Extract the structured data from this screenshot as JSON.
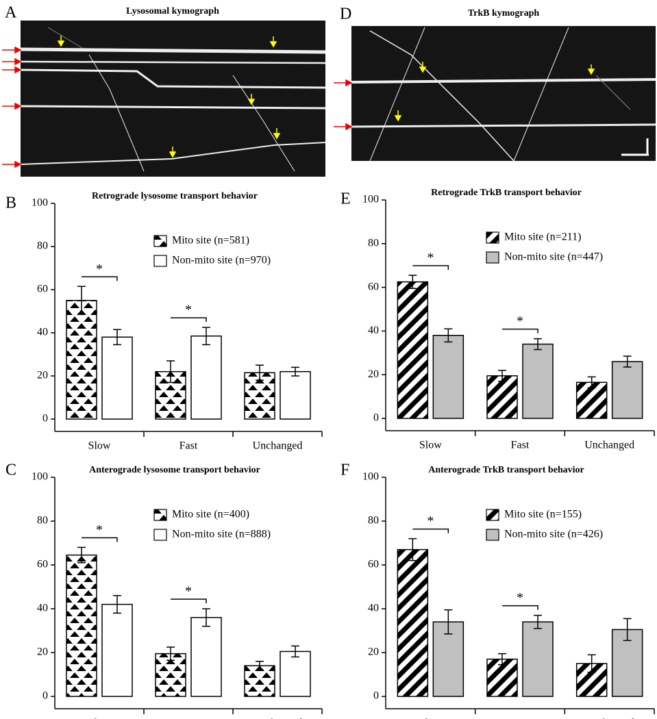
{
  "kymographs": [
    {
      "letter": "A",
      "title": "Lysosomal kymograph"
    },
    {
      "letter": "D",
      "title": "TrkB kymograph"
    }
  ],
  "chart_data": [
    {
      "type": "bar",
      "letter": "B",
      "title": "Retrograde lysosome transport behavior",
      "categories": [
        "Slow",
        "Fast",
        "Unchanged"
      ],
      "series": [
        {
          "name": "Mito site (n=581)",
          "color": "#000000",
          "pattern": "triangles",
          "values": [
            55,
            22,
            21.5
          ],
          "errors": [
            6.5,
            5,
            3.5
          ]
        },
        {
          "name": "Non-mito site (n=970)",
          "color": "#ffffff",
          "pattern": "solid",
          "values": [
            38,
            38.5,
            22
          ],
          "errors": [
            3.5,
            4,
            2
          ]
        }
      ],
      "annotations": [
        "*",
        "*"
      ],
      "legend": "upper right",
      "ylim": [
        0,
        100
      ],
      "yticks": [
        0,
        20,
        40,
        60,
        80,
        100
      ]
    },
    {
      "type": "bar",
      "letter": "C",
      "title": "Anterograde lysosome transport behavior",
      "categories": [
        "Slow",
        "Fast",
        "Unchanged"
      ],
      "series": [
        {
          "name": "Mito site (n=400)",
          "color": "#000000",
          "pattern": "triangles",
          "values": [
            64.5,
            19.5,
            14
          ],
          "errors": [
            3.5,
            3,
            2
          ]
        },
        {
          "name": "Non-mito site (n=888)",
          "color": "#ffffff",
          "pattern": "solid",
          "values": [
            42,
            36,
            20.5
          ],
          "errors": [
            4,
            4,
            2.5
          ]
        }
      ],
      "annotations": [
        "*",
        "*"
      ],
      "legend": "upper right",
      "ylim": [
        0,
        100
      ],
      "yticks": [
        0,
        20,
        40,
        60,
        80,
        100
      ]
    },
    {
      "type": "bar",
      "letter": "E",
      "title": "Retrograde TrkB transport behavior",
      "categories": [
        "Slow",
        "Fast",
        "Unchanged"
      ],
      "series": [
        {
          "name": "Mito site (n=211)",
          "color": "#000000",
          "pattern": "stripes",
          "values": [
            62.5,
            19.5,
            16.5
          ],
          "errors": [
            3,
            2.5,
            2.5
          ]
        },
        {
          "name": "Non-mito site (n=447)",
          "color": "#c0c0c0",
          "pattern": "solid",
          "values": [
            38,
            34,
            26
          ],
          "errors": [
            3,
            2.5,
            2.5
          ]
        }
      ],
      "annotations": [
        "*",
        "*"
      ],
      "legend": "upper right",
      "ylim": [
        0,
        100
      ],
      "yticks": [
        0,
        20,
        40,
        60,
        80,
        100
      ]
    },
    {
      "type": "bar",
      "letter": "F",
      "title": "Anterograde TrkB transport behavior",
      "categories": [
        "Slow",
        "Fast",
        "Unchanged"
      ],
      "series": [
        {
          "name": "Mito site (n=155)",
          "color": "#000000",
          "pattern": "stripes",
          "values": [
            67,
            17,
            15
          ],
          "errors": [
            5,
            2.5,
            4
          ]
        },
        {
          "name": "Non-mito site (n=426)",
          "color": "#c0c0c0",
          "pattern": "solid",
          "values": [
            34,
            34,
            30.5
          ],
          "errors": [
            5.5,
            3,
            5
          ]
        }
      ],
      "annotations": [
        "*",
        "*"
      ],
      "legend": "upper right",
      "ylim": [
        0,
        100
      ],
      "yticks": [
        0,
        20,
        40,
        60,
        80,
        100
      ]
    }
  ]
}
